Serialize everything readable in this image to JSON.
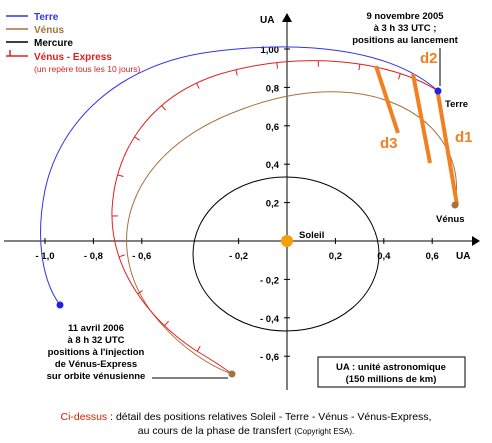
{
  "legend": {
    "earth": "Terre",
    "venus": "Vénus",
    "mercury": "Mercure",
    "venus_express": "Vénus - Express",
    "venus_express_note": "(un repère tous les 10 jours)"
  },
  "axes": {
    "x_unit": "UA",
    "y_unit": "UA",
    "x_ticks": [
      {
        "v": -1.0,
        "label": "- 1,0"
      },
      {
        "v": -0.8,
        "label": "- 0,8"
      },
      {
        "v": -0.6,
        "label": "- 0,6"
      },
      {
        "v": -0.2,
        "label": "- 0,2"
      },
      {
        "v": 0.2,
        "label": "0,2"
      },
      {
        "v": 0.4,
        "label": "0,4"
      },
      {
        "v": 0.6,
        "label": "0,6"
      }
    ],
    "y_ticks": [
      {
        "v": 1.0,
        "label": "1,00"
      },
      {
        "v": 0.8,
        "label": "0,8"
      },
      {
        "v": 0.6,
        "label": "0,6"
      },
      {
        "v": 0.4,
        "label": "0,4"
      },
      {
        "v": 0.2,
        "label": "0,2"
      },
      {
        "v": -0.2,
        "label": "- 0,2"
      },
      {
        "v": -0.4,
        "label": "- 0,4"
      },
      {
        "v": -0.6,
        "label": "- 0,6"
      }
    ]
  },
  "labels": {
    "sun": "Soleil",
    "earth": "Terre",
    "venus": "Vénus",
    "launch_line1": "9 novembre 2005",
    "launch_line2": "à 3 h 33 UTC ;",
    "launch_line3": "positions au lancement",
    "arrival_line1": "11 avril 2006",
    "arrival_line2": "à 8 h 32 UTC",
    "arrival_line3": "positions à l'injection",
    "arrival_line4": "de Vénus-Express",
    "arrival_line5": "sur orbite vénusienne",
    "ua_line1": "UA : unité astronomique",
    "ua_line2": "(150 millions de km)",
    "d1": "d1",
    "d2": "d2",
    "d3": "d3"
  },
  "caption": {
    "prefix": "Ci-dessus",
    "line1": " : détail des positions relatives Soleil - Terre - Vénus - Vénus-Express,",
    "line2": "au cours de la phase de transfert ",
    "copyright": "(Copyright ESA)."
  },
  "colors": {
    "earth": "#3333ee",
    "venus": "#a8703c",
    "mercury": "#000000",
    "venus_express": "#e02020",
    "sun": "#f5a000",
    "distance": "#f08020",
    "label_orange": "#f08020"
  }
}
